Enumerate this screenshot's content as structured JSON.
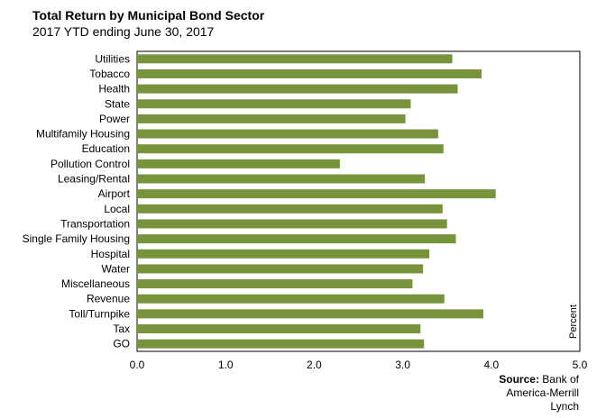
{
  "chart_data": {
    "type": "bar",
    "orientation": "horizontal",
    "title": "Total Return by Municipal Bond Sector",
    "subtitle": "2017 YTD ending June 30, 2017",
    "categories": [
      "Utilities",
      "Tobacco",
      "Health",
      "State",
      "Power",
      "Multifamily Housing",
      "Education",
      "Pollution Control",
      "Leasing/Rental",
      "Airport",
      "Local",
      "Transportation",
      "Single Family Housing",
      "Hospital",
      "Water",
      "Miscellaneous",
      "Revenue",
      "Toll/Turnpike",
      "Tax",
      "GO"
    ],
    "values": [
      3.56,
      3.89,
      3.62,
      3.09,
      3.03,
      3.4,
      3.46,
      2.29,
      3.25,
      4.05,
      3.45,
      3.5,
      3.6,
      3.3,
      3.23,
      3.11,
      3.47,
      3.91,
      3.2,
      3.24
    ],
    "xlim": [
      0,
      5
    ],
    "xticks": [
      "0.0",
      "1.0",
      "2.0",
      "3.0",
      "4.0",
      "5.0"
    ],
    "xlabel": "Percent",
    "bar_color": "#77933c",
    "grid": false
  },
  "source": {
    "label": "Source:",
    "text": "Bank of America-Merrill Lynch",
    "line1": "Bank of",
    "line2": "America-Merrill",
    "line3": "Lynch"
  }
}
